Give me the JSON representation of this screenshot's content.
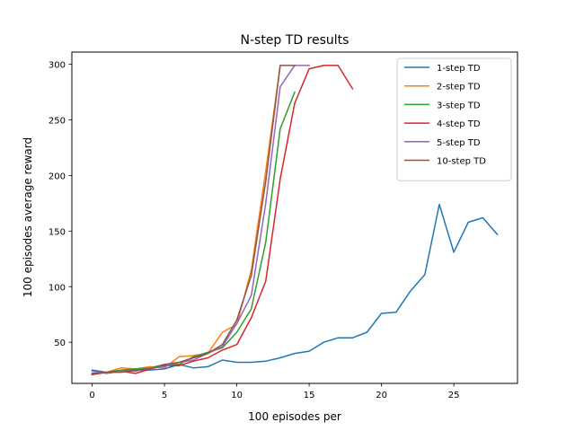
{
  "chart_data": {
    "type": "line",
    "title": "N-step TD results",
    "xlabel": "100 episodes per",
    "ylabel": "100 episodes average reward",
    "xlim": [
      -1.4,
      29.4
    ],
    "ylim": [
      13,
      311
    ],
    "xticks": [
      0,
      5,
      10,
      15,
      20,
      25
    ],
    "yticks": [
      50,
      100,
      150,
      200,
      250,
      300
    ],
    "grid": false,
    "legend_position": "top-right",
    "series": [
      {
        "name": "1-step TD",
        "color": "#1f77b4",
        "x": [
          0,
          1,
          2,
          3,
          4,
          5,
          6,
          7,
          8,
          9,
          10,
          11,
          12,
          13,
          14,
          15,
          16,
          17,
          18,
          19,
          20,
          21,
          22,
          23,
          24,
          25,
          26,
          27,
          28
        ],
        "y": [
          25,
          23,
          24,
          25,
          25,
          26,
          30,
          27,
          28,
          34,
          32,
          32,
          33,
          36,
          40,
          42,
          50,
          54,
          54,
          59,
          76,
          77,
          96,
          111,
          174,
          131,
          158,
          162,
          147
        ]
      },
      {
        "name": "2-step TD",
        "color": "#ff7f0e",
        "x": [
          0,
          1,
          2,
          3,
          4,
          5,
          6,
          7,
          8,
          9,
          10,
          11,
          12,
          13
        ],
        "y": [
          22,
          23,
          27,
          26,
          28,
          27,
          37,
          38,
          40,
          59,
          66,
          115,
          204,
          299
        ]
      },
      {
        "name": "3-step TD",
        "color": "#2ca02c",
        "x": [
          0,
          1,
          2,
          3,
          4,
          5,
          6,
          7,
          8,
          9,
          10,
          11,
          12,
          13,
          14
        ],
        "y": [
          21,
          23,
          25,
          26,
          27,
          30,
          30,
          37,
          41,
          45,
          59,
          80,
          140,
          242,
          275
        ]
      },
      {
        "name": "4-step TD",
        "color": "#d62728",
        "x": [
          0,
          1,
          2,
          3,
          4,
          5,
          6,
          7,
          8,
          9,
          10,
          11,
          12,
          13,
          14,
          15,
          16,
          17,
          18
        ],
        "y": [
          21,
          23,
          24,
          22,
          26,
          29,
          29,
          33,
          36,
          43,
          48,
          72,
          105,
          197,
          265,
          296,
          299,
          299,
          278
        ]
      },
      {
        "name": "5-step TD",
        "color": "#9467bd",
        "x": [
          0,
          1,
          2,
          3,
          4,
          5,
          6,
          7,
          8,
          9,
          10,
          11,
          12,
          13,
          14,
          15
        ],
        "y": [
          24,
          22,
          24,
          24,
          27,
          28,
          32,
          34,
          40,
          46,
          67,
          92,
          175,
          280,
          299,
          299
        ]
      },
      {
        "name": "10-step TD",
        "color": "#8c564b",
        "x": [
          0,
          1,
          2,
          3,
          4,
          5,
          6,
          7,
          8,
          9,
          10,
          11,
          12,
          13,
          14
        ],
        "y": [
          22,
          23,
          23,
          25,
          26,
          30,
          32,
          36,
          40,
          48,
          70,
          110,
          195,
          299,
          299
        ]
      }
    ]
  }
}
